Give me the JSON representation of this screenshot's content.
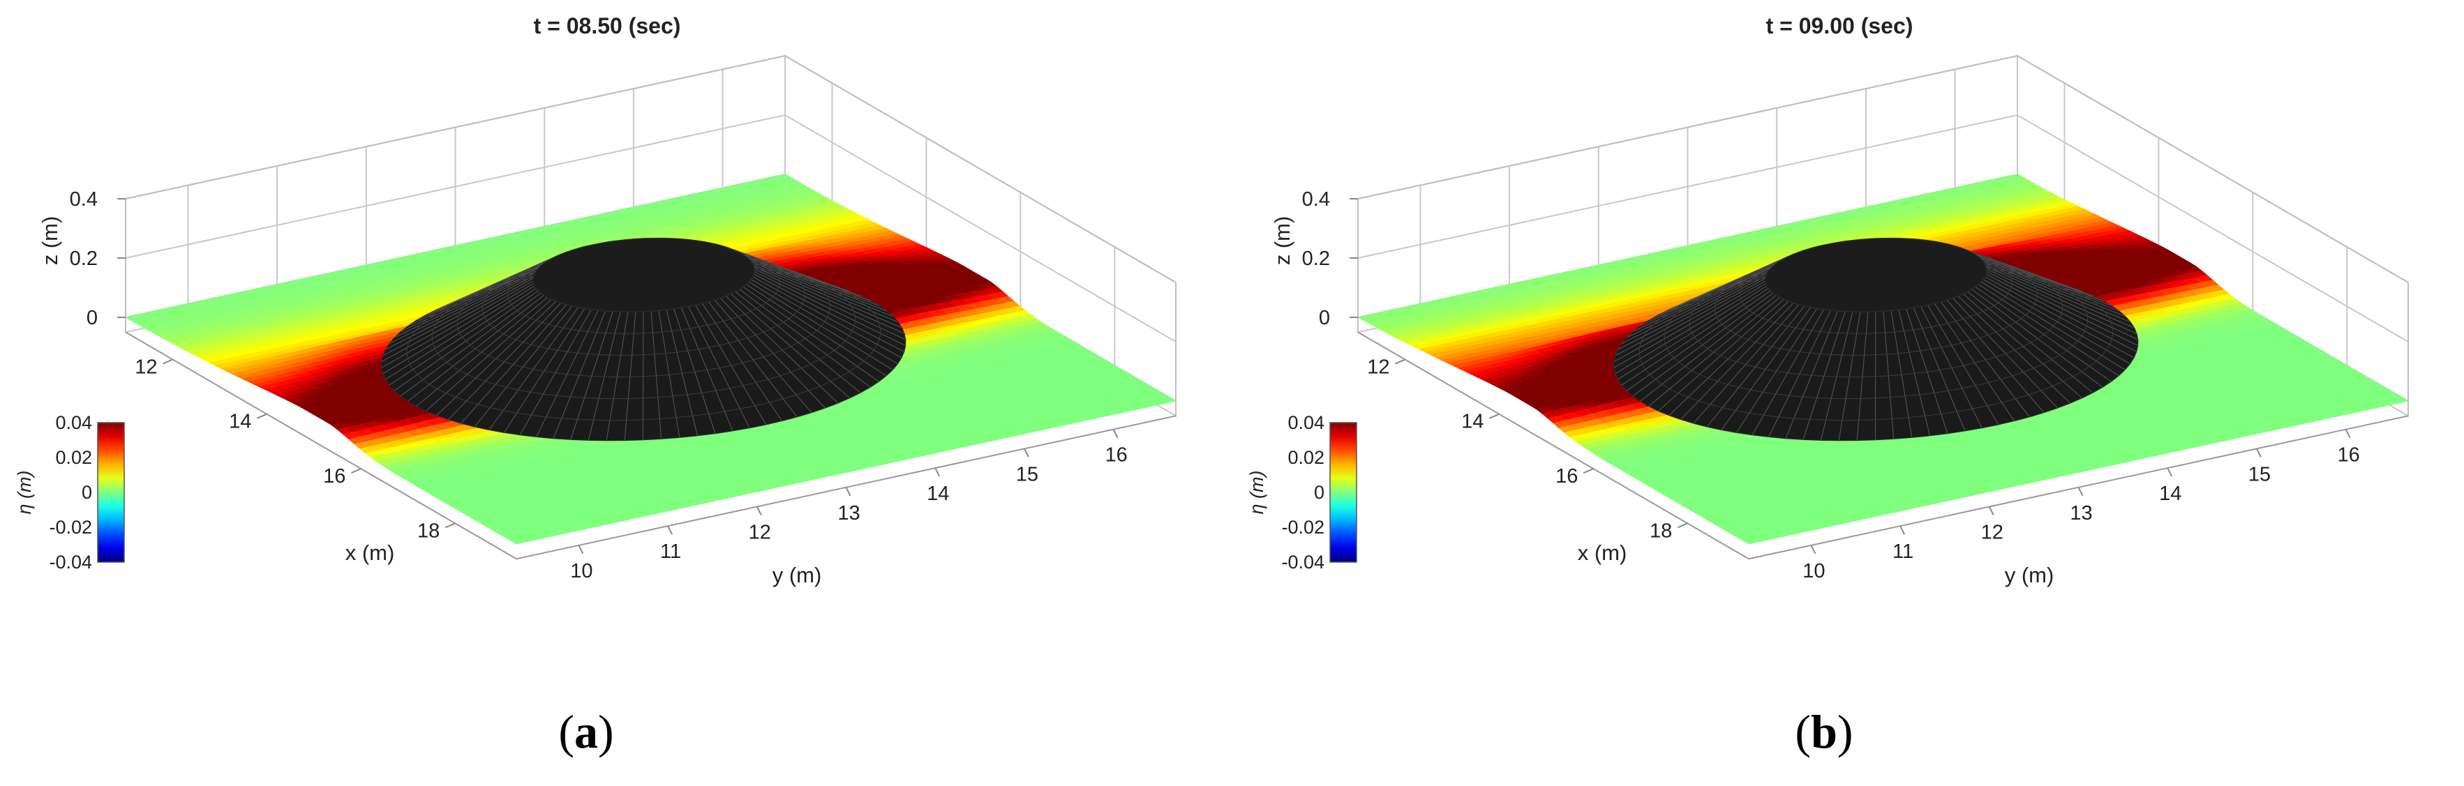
{
  "captions": [
    {
      "open": "(",
      "letter": "a",
      "close": ")"
    },
    {
      "open": "(",
      "letter": "b",
      "close": ")"
    }
  ],
  "chart_data": [
    {
      "type": "surface3d",
      "title": "t = 08.50 (sec)",
      "xlabel": "x (m)",
      "ylabel": "y (m)",
      "zlabel": "z (m)",
      "x_ticks": [
        "12",
        "14",
        "16",
        "18"
      ],
      "y_ticks": [
        "10",
        "11",
        "12",
        "13",
        "14",
        "15",
        "16"
      ],
      "z_ticks": [
        "0.4",
        "0.2",
        "0"
      ],
      "zlim": [
        -0.05,
        0.4
      ],
      "colorbar": {
        "label": "η (m)",
        "ticks": [
          "0.04",
          "0.02",
          "0",
          "-0.02",
          "-0.04"
        ],
        "range": [
          -0.04,
          0.04
        ],
        "colormap": "jet"
      },
      "wave_crest_x": 15.2,
      "wave_amplitude": 0.04,
      "island_color": "#1a1a1a",
      "surface_background_color": "#99ff80"
    },
    {
      "type": "surface3d",
      "title": "t = 09.00 (sec)",
      "xlabel": "x (m)",
      "ylabel": "y (m)",
      "zlabel": "z (m)",
      "x_ticks": [
        "12",
        "14",
        "16",
        "18"
      ],
      "y_ticks": [
        "10",
        "11",
        "12",
        "13",
        "14",
        "15",
        "16"
      ],
      "z_ticks": [
        "0.4",
        "0.2",
        "0"
      ],
      "zlim": [
        -0.05,
        0.4
      ],
      "colorbar": {
        "label": "η (m)",
        "ticks": [
          "0.04",
          "0.02",
          "0",
          "-0.02",
          "-0.04"
        ],
        "range": [
          -0.04,
          0.04
        ],
        "colormap": "jet"
      },
      "wave_crest_x": 14.6,
      "wave_amplitude": 0.04,
      "island_color": "#1a1a1a",
      "surface_background_color": "#99ff80"
    }
  ]
}
